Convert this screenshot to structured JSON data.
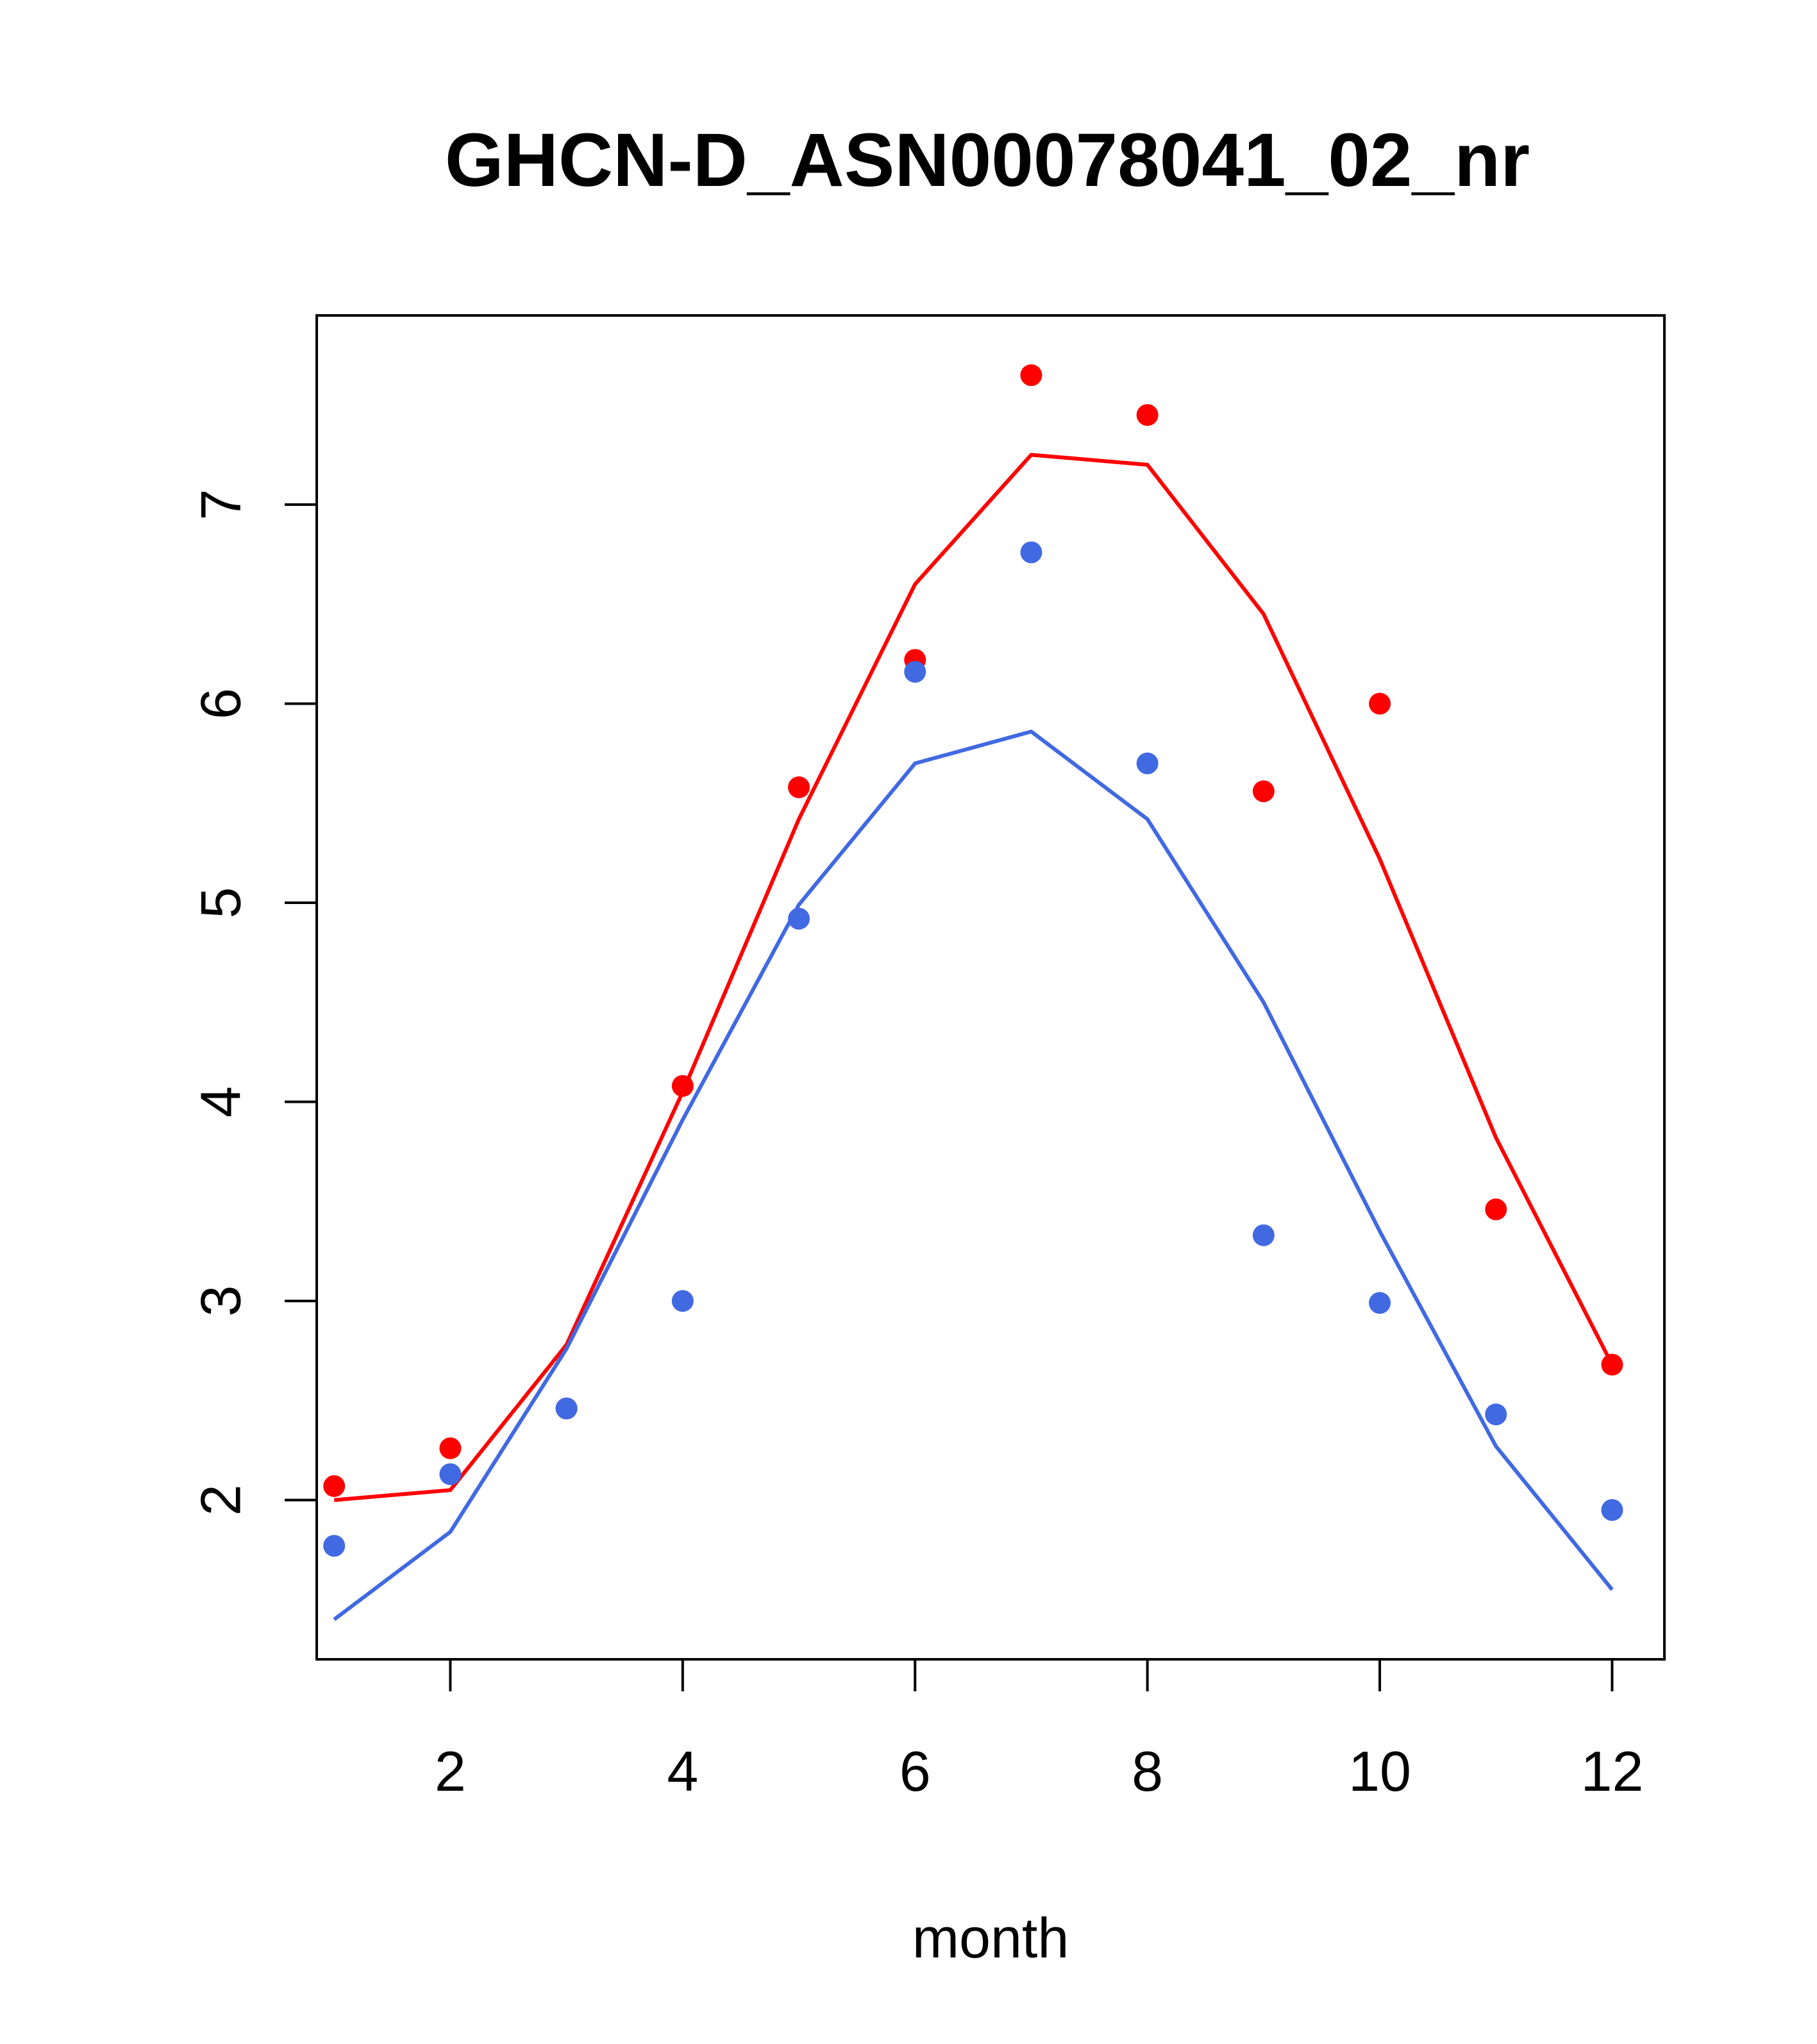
{
  "chart_data": {
    "type": "line",
    "title": "GHCN-D_ASN00078041_02_nr",
    "xlabel": "month",
    "ylabel": "",
    "xlim": [
      0.85,
      12.45
    ],
    "ylim": [
      1.2,
      7.95
    ],
    "x_ticks": [
      2,
      4,
      6,
      8,
      10,
      12
    ],
    "y_ticks": [
      2,
      3,
      4,
      5,
      6,
      7
    ],
    "grid": false,
    "legend": "none",
    "x": [
      1,
      2,
      3,
      4,
      5,
      6,
      7,
      8,
      9,
      10,
      11,
      12
    ],
    "series": [
      {
        "color": "#ff0000",
        "line": [
          2.0,
          2.05,
          2.78,
          4.05,
          5.42,
          6.6,
          7.25,
          7.2,
          6.45,
          5.22,
          3.82,
          2.68
        ],
        "points": [
          2.07,
          2.26,
          2.46,
          4.08,
          5.58,
          6.22,
          7.65,
          7.45,
          5.56,
          6.0,
          3.46,
          2.68
        ]
      },
      {
        "color": "#4169e1",
        "line": [
          1.4,
          1.84,
          2.76,
          3.91,
          4.99,
          5.7,
          5.86,
          5.42,
          4.5,
          3.35,
          2.27,
          1.55
        ],
        "points": [
          1.77,
          2.13,
          2.46,
          3.0,
          4.92,
          6.16,
          6.76,
          5.7,
          3.33,
          2.99,
          2.43,
          1.95
        ]
      }
    ]
  }
}
